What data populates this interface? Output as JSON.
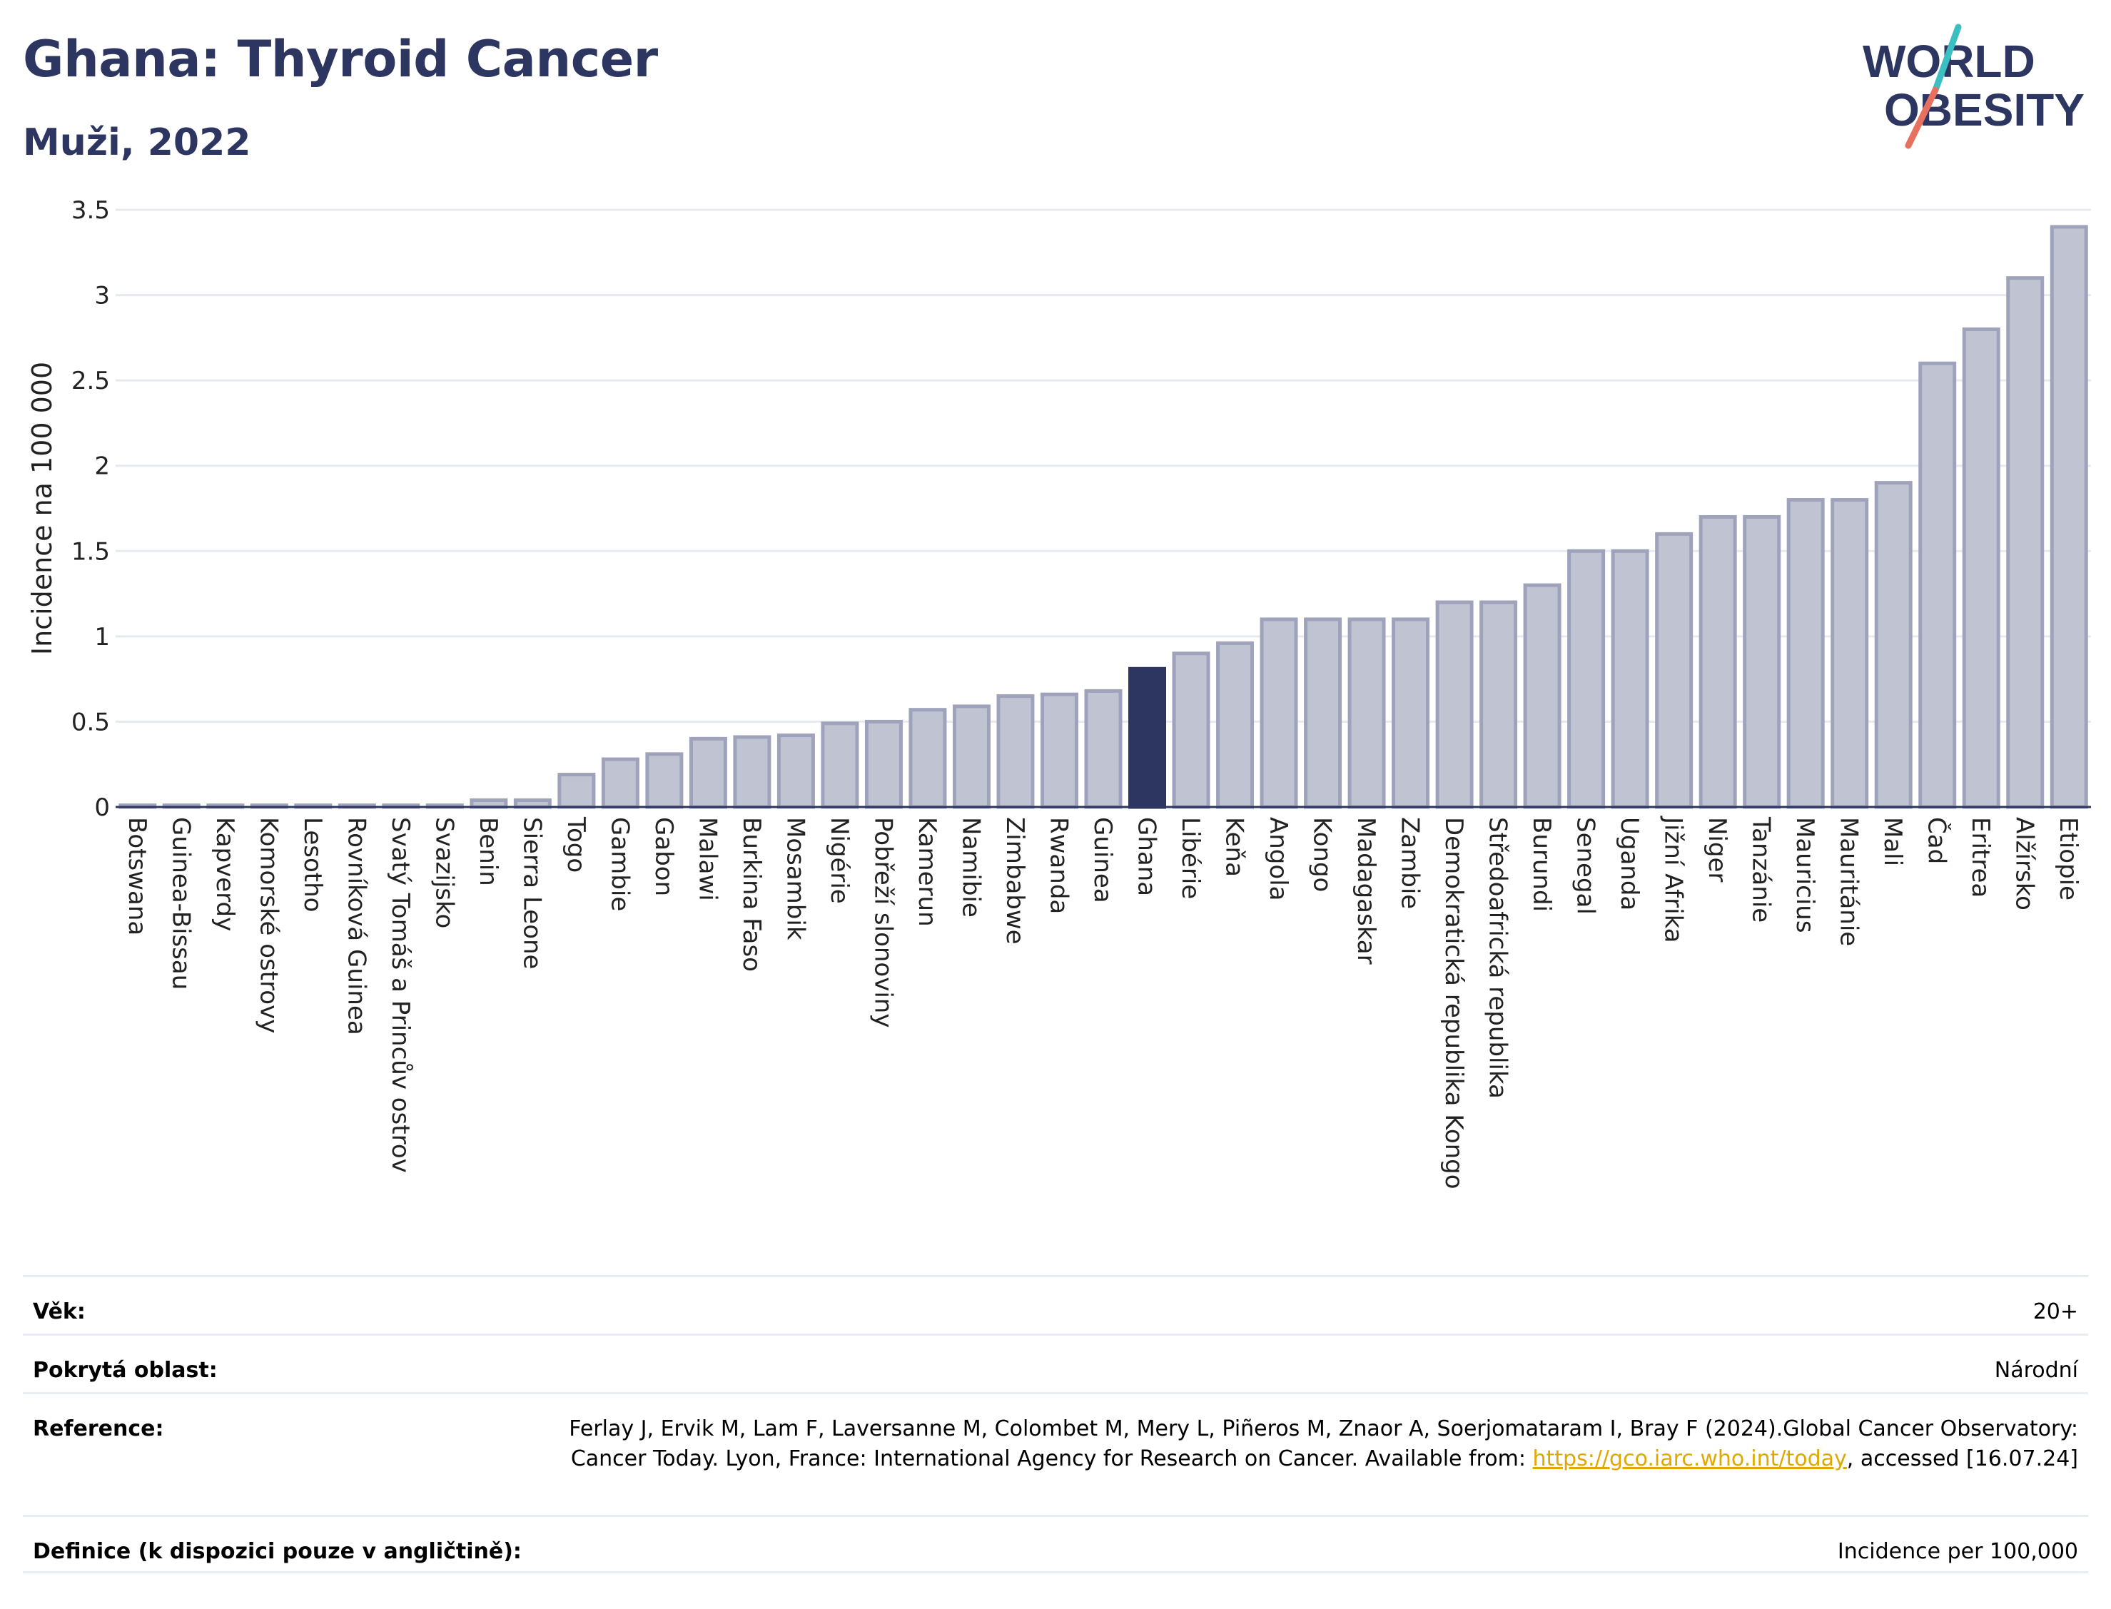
{
  "header": {
    "title": "Ghana: Thyroid Cancer",
    "subtitle": "Muži, 2022",
    "logo_text_line1": "WORLD",
    "logo_text_line2": "OBESITY"
  },
  "chart_data": {
    "type": "bar",
    "ylabel": "Incidence na 100 000",
    "xlabel": "",
    "ylim": [
      0,
      3.5
    ],
    "yticks": [
      0,
      0.5,
      1,
      1.5,
      2,
      2.5,
      3,
      3.5
    ],
    "ytick_labels": [
      "0",
      "0.5",
      "1",
      "1.5",
      "2",
      "2.5",
      "3",
      "3.5"
    ],
    "grid": true,
    "highlight": "Ghana",
    "colors": {
      "bar": "#c0c4d2",
      "bar_edge": "#9ea3bb",
      "highlight": "#2d3561",
      "grid": "#e6eaf0",
      "axis": "#2d3561"
    },
    "categories": [
      "Botswana",
      "Guinea-Bissau",
      "Kapverdy",
      "Komorské ostrovy",
      "Lesotho",
      "Rovníková Guinea",
      "Svatý Tomáš a Princův ostrov",
      "Svazijsko",
      "Benin",
      "Sierra Leone",
      "Togo",
      "Gambie",
      "Gabon",
      "Malawi",
      "Burkina Faso",
      "Mosambik",
      "Nigérie",
      "Pobřeží slonoviny",
      "Kamerun",
      "Namibie",
      "Zimbabwe",
      "Rwanda",
      "Guinea",
      "Ghana",
      "Libérie",
      "Keňa",
      "Angola",
      "Kongo",
      "Madagaskar",
      "Zambie",
      "Demokratická republika Kongo",
      "Středoafrická republika",
      "Burundi",
      "Senegal",
      "Uganda",
      "Jižní Afrika",
      "Niger",
      "Tanzánie",
      "Mauricius",
      "Mauritánie",
      "Mali",
      "Čad",
      "Eritrea",
      "Alžírsko",
      "Etiopie"
    ],
    "values": [
      0.01,
      0.01,
      0.01,
      0.01,
      0.01,
      0.01,
      0.01,
      0.01,
      0.04,
      0.04,
      0.19,
      0.28,
      0.31,
      0.4,
      0.41,
      0.42,
      0.49,
      0.5,
      0.57,
      0.59,
      0.65,
      0.66,
      0.68,
      0.81,
      0.9,
      0.96,
      1.1,
      1.1,
      1.1,
      1.1,
      1.2,
      1.2,
      1.3,
      1.5,
      1.5,
      1.6,
      1.7,
      1.7,
      1.8,
      1.8,
      1.9,
      2.6,
      2.8,
      3.1,
      3.4
    ]
  },
  "meta": {
    "age_label": "Věk:",
    "age_value": "20+",
    "area_label": "Pokrytá oblast:",
    "area_value": "Národní",
    "reference_label": "Reference:",
    "reference_text": "Ferlay J, Ervik M, Lam F, Laversanne M, Colombet M, Mery L, Piñeros M, Znaor A, Soerjomataram I, Bray F (2024).Global Cancer Observatory: Cancer Today. Lyon, France: International Agency for Research on Cancer. Available from: ",
    "reference_link": "https://gco.iarc.who.int/today",
    "reference_suffix": ", accessed [16.07.24]",
    "definition_label": "Definice (k dispozici pouze v angličtině):",
    "definition_value": "Incidence per 100,000"
  }
}
